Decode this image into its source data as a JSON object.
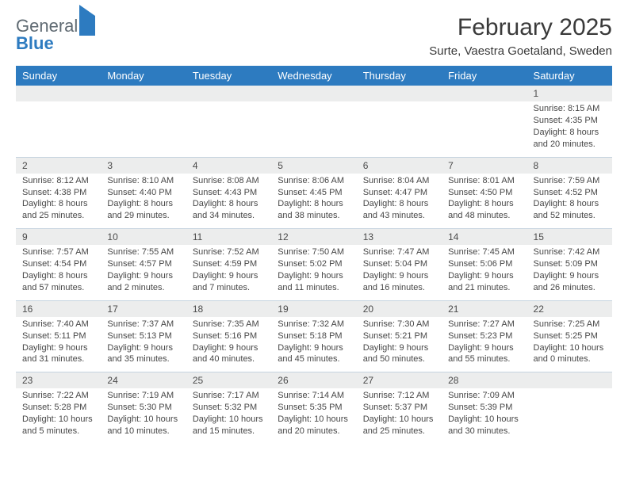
{
  "brand": {
    "word1": "General",
    "word2": "Blue"
  },
  "title": "February 2025",
  "location": "Surte, Vaestra Goetaland, Sweden",
  "colors": {
    "header_bg": "#2d7bc0",
    "header_text": "#ffffff",
    "row_separator": "#c5d3df",
    "daynum_bg": "#eceded",
    "body_text": "#474747",
    "brand_gray": "#5f6a72",
    "brand_blue": "#2d7bc0"
  },
  "weekdays": [
    "Sunday",
    "Monday",
    "Tuesday",
    "Wednesday",
    "Thursday",
    "Friday",
    "Saturday"
  ],
  "weeks": [
    [
      {
        "n": "",
        "sunrise": "",
        "sunset": "",
        "daylight": ""
      },
      {
        "n": "",
        "sunrise": "",
        "sunset": "",
        "daylight": ""
      },
      {
        "n": "",
        "sunrise": "",
        "sunset": "",
        "daylight": ""
      },
      {
        "n": "",
        "sunrise": "",
        "sunset": "",
        "daylight": ""
      },
      {
        "n": "",
        "sunrise": "",
        "sunset": "",
        "daylight": ""
      },
      {
        "n": "",
        "sunrise": "",
        "sunset": "",
        "daylight": ""
      },
      {
        "n": "1",
        "sunrise": "Sunrise: 8:15 AM",
        "sunset": "Sunset: 4:35 PM",
        "daylight": "Daylight: 8 hours and 20 minutes."
      }
    ],
    [
      {
        "n": "2",
        "sunrise": "Sunrise: 8:12 AM",
        "sunset": "Sunset: 4:38 PM",
        "daylight": "Daylight: 8 hours and 25 minutes."
      },
      {
        "n": "3",
        "sunrise": "Sunrise: 8:10 AM",
        "sunset": "Sunset: 4:40 PM",
        "daylight": "Daylight: 8 hours and 29 minutes."
      },
      {
        "n": "4",
        "sunrise": "Sunrise: 8:08 AM",
        "sunset": "Sunset: 4:43 PM",
        "daylight": "Daylight: 8 hours and 34 minutes."
      },
      {
        "n": "5",
        "sunrise": "Sunrise: 8:06 AM",
        "sunset": "Sunset: 4:45 PM",
        "daylight": "Daylight: 8 hours and 38 minutes."
      },
      {
        "n": "6",
        "sunrise": "Sunrise: 8:04 AM",
        "sunset": "Sunset: 4:47 PM",
        "daylight": "Daylight: 8 hours and 43 minutes."
      },
      {
        "n": "7",
        "sunrise": "Sunrise: 8:01 AM",
        "sunset": "Sunset: 4:50 PM",
        "daylight": "Daylight: 8 hours and 48 minutes."
      },
      {
        "n": "8",
        "sunrise": "Sunrise: 7:59 AM",
        "sunset": "Sunset: 4:52 PM",
        "daylight": "Daylight: 8 hours and 52 minutes."
      }
    ],
    [
      {
        "n": "9",
        "sunrise": "Sunrise: 7:57 AM",
        "sunset": "Sunset: 4:54 PM",
        "daylight": "Daylight: 8 hours and 57 minutes."
      },
      {
        "n": "10",
        "sunrise": "Sunrise: 7:55 AM",
        "sunset": "Sunset: 4:57 PM",
        "daylight": "Daylight: 9 hours and 2 minutes."
      },
      {
        "n": "11",
        "sunrise": "Sunrise: 7:52 AM",
        "sunset": "Sunset: 4:59 PM",
        "daylight": "Daylight: 9 hours and 7 minutes."
      },
      {
        "n": "12",
        "sunrise": "Sunrise: 7:50 AM",
        "sunset": "Sunset: 5:02 PM",
        "daylight": "Daylight: 9 hours and 11 minutes."
      },
      {
        "n": "13",
        "sunrise": "Sunrise: 7:47 AM",
        "sunset": "Sunset: 5:04 PM",
        "daylight": "Daylight: 9 hours and 16 minutes."
      },
      {
        "n": "14",
        "sunrise": "Sunrise: 7:45 AM",
        "sunset": "Sunset: 5:06 PM",
        "daylight": "Daylight: 9 hours and 21 minutes."
      },
      {
        "n": "15",
        "sunrise": "Sunrise: 7:42 AM",
        "sunset": "Sunset: 5:09 PM",
        "daylight": "Daylight: 9 hours and 26 minutes."
      }
    ],
    [
      {
        "n": "16",
        "sunrise": "Sunrise: 7:40 AM",
        "sunset": "Sunset: 5:11 PM",
        "daylight": "Daylight: 9 hours and 31 minutes."
      },
      {
        "n": "17",
        "sunrise": "Sunrise: 7:37 AM",
        "sunset": "Sunset: 5:13 PM",
        "daylight": "Daylight: 9 hours and 35 minutes."
      },
      {
        "n": "18",
        "sunrise": "Sunrise: 7:35 AM",
        "sunset": "Sunset: 5:16 PM",
        "daylight": "Daylight: 9 hours and 40 minutes."
      },
      {
        "n": "19",
        "sunrise": "Sunrise: 7:32 AM",
        "sunset": "Sunset: 5:18 PM",
        "daylight": "Daylight: 9 hours and 45 minutes."
      },
      {
        "n": "20",
        "sunrise": "Sunrise: 7:30 AM",
        "sunset": "Sunset: 5:21 PM",
        "daylight": "Daylight: 9 hours and 50 minutes."
      },
      {
        "n": "21",
        "sunrise": "Sunrise: 7:27 AM",
        "sunset": "Sunset: 5:23 PM",
        "daylight": "Daylight: 9 hours and 55 minutes."
      },
      {
        "n": "22",
        "sunrise": "Sunrise: 7:25 AM",
        "sunset": "Sunset: 5:25 PM",
        "daylight": "Daylight: 10 hours and 0 minutes."
      }
    ],
    [
      {
        "n": "23",
        "sunrise": "Sunrise: 7:22 AM",
        "sunset": "Sunset: 5:28 PM",
        "daylight": "Daylight: 10 hours and 5 minutes."
      },
      {
        "n": "24",
        "sunrise": "Sunrise: 7:19 AM",
        "sunset": "Sunset: 5:30 PM",
        "daylight": "Daylight: 10 hours and 10 minutes."
      },
      {
        "n": "25",
        "sunrise": "Sunrise: 7:17 AM",
        "sunset": "Sunset: 5:32 PM",
        "daylight": "Daylight: 10 hours and 15 minutes."
      },
      {
        "n": "26",
        "sunrise": "Sunrise: 7:14 AM",
        "sunset": "Sunset: 5:35 PM",
        "daylight": "Daylight: 10 hours and 20 minutes."
      },
      {
        "n": "27",
        "sunrise": "Sunrise: 7:12 AM",
        "sunset": "Sunset: 5:37 PM",
        "daylight": "Daylight: 10 hours and 25 minutes."
      },
      {
        "n": "28",
        "sunrise": "Sunrise: 7:09 AM",
        "sunset": "Sunset: 5:39 PM",
        "daylight": "Daylight: 10 hours and 30 minutes."
      },
      {
        "n": "",
        "sunrise": "",
        "sunset": "",
        "daylight": ""
      }
    ]
  ]
}
